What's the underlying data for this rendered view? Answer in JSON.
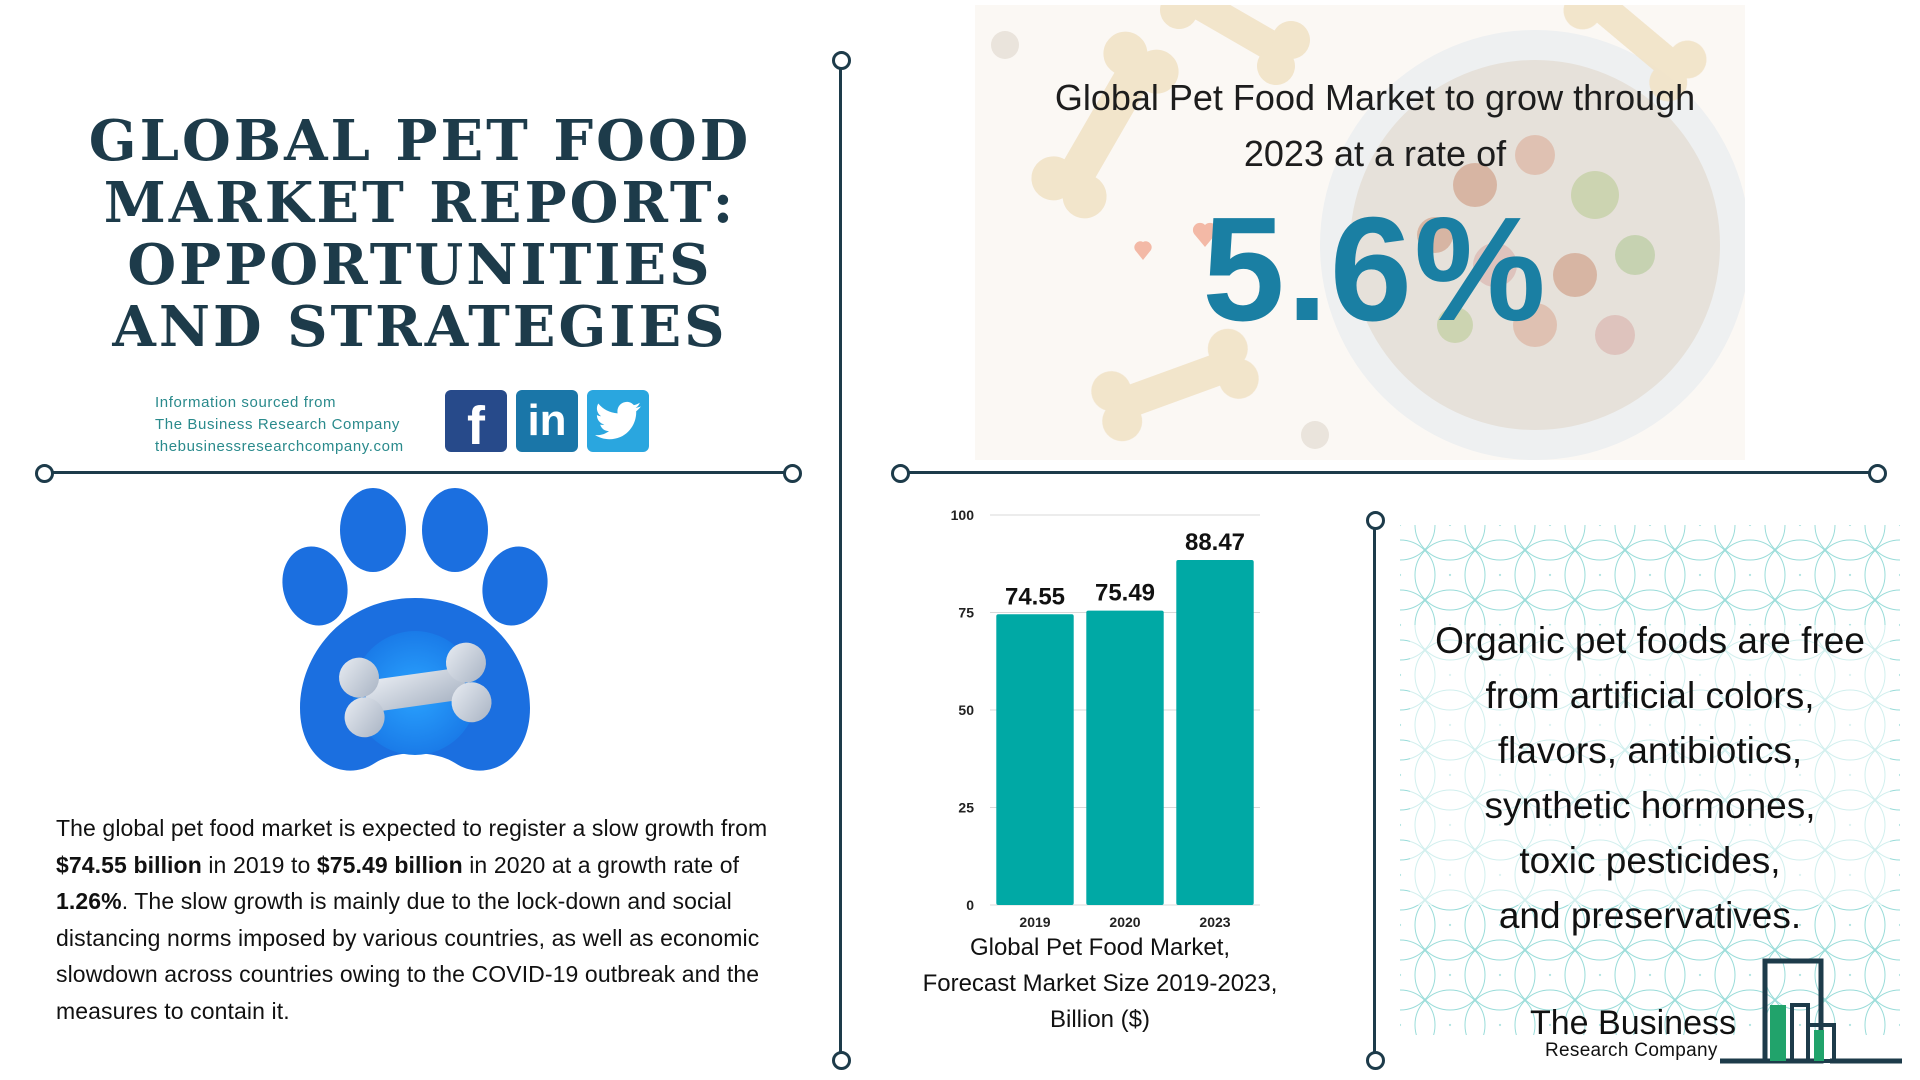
{
  "title": {
    "line1": "GLOBAL PET FOOD",
    "line2": "MARKET REPORT:",
    "line3": "OPPORTUNITIES",
    "line4": "AND STRATEGIES"
  },
  "source": {
    "line1": "Information sourced from",
    "line2": "The Business Research Company",
    "line3": "thebusinessresearchcompany.com"
  },
  "social": {
    "facebook_glyph": "f",
    "linkedin_glyph": "in",
    "twitter_icon": "twitter-bird-icon"
  },
  "paragraph": {
    "t1": "The global pet food market is expected to register a slow growth from ",
    "b1": "$74.55 billion",
    "t2": " in 2019 to ",
    "b2": "$75.49 billion",
    "t3": " in 2020 at a growth rate of ",
    "b3": "1.26%",
    "t4": ". The slow growth is mainly due to the lock-down and social distancing norms imposed by various countries, as well as economic slowdown across countries owing to the COVID-19 outbreak and the measures to contain it."
  },
  "hero": {
    "line1": "Global Pet Food Market to grow through",
    "line2": "2023 at a rate of",
    "rate": "5.6%"
  },
  "chart_data": {
    "type": "bar",
    "categories": [
      "2019",
      "2020",
      "2023"
    ],
    "values": [
      74.55,
      75.49,
      88.47
    ],
    "value_labels": [
      "74.55",
      "75.49",
      "88.47"
    ],
    "yticks": [
      "0",
      "25",
      "50",
      "75",
      "100"
    ],
    "ylim": [
      0,
      100
    ],
    "title": "",
    "color": "#00a9a5",
    "grid": true
  },
  "chart_caption": {
    "line1": "Global Pet Food Market,",
    "line2": "Forecast Market Size 2019-2023,",
    "line3": "Billion ($)"
  },
  "organic": {
    "line1": "Organic pet foods are free",
    "line2": "from artificial colors,",
    "line3": "flavors, antibiotics,",
    "line4": "synthetic hormones,",
    "line5": "toxic pesticides,",
    "line6": "and preservatives."
  },
  "brand": {
    "name": "The Business",
    "sub": "Research Company"
  },
  "colors": {
    "navy": "#1d3b4a",
    "teal_bar": "#00a9a5",
    "rate_blue": "#1a7fa3",
    "paw_blue": "#1b6fe0"
  }
}
